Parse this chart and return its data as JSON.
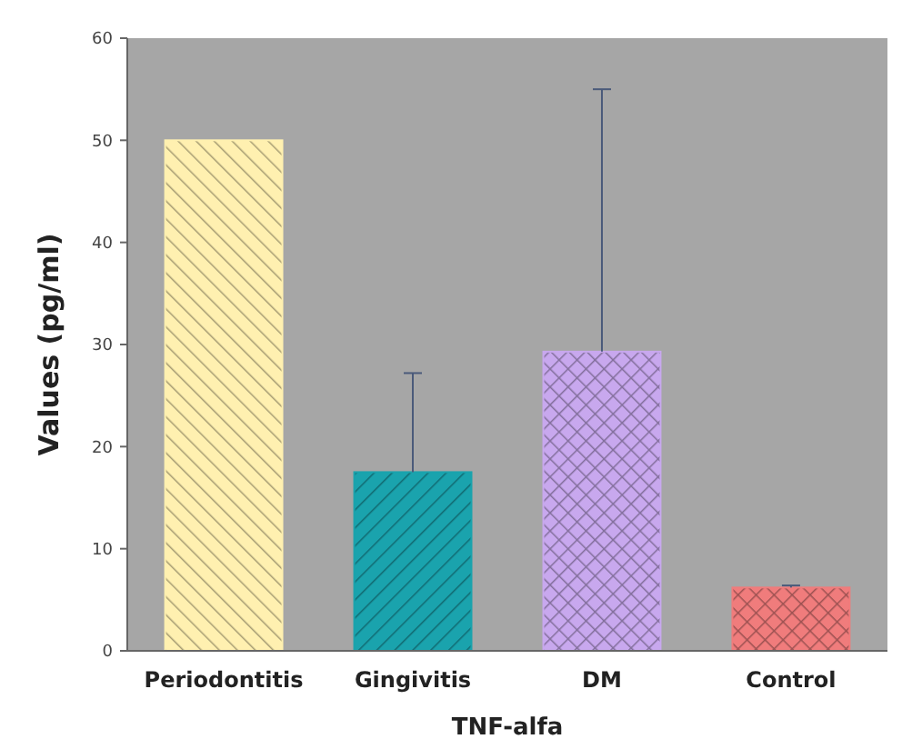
{
  "chart_data": {
    "type": "bar",
    "xlabel": "TNF-alfa",
    "ylabel": "Values (pg/ml)",
    "categories": [
      "Periodontitis",
      "Gingivitis",
      "DM",
      "Control"
    ],
    "values": [
      50,
      17.5,
      29.3,
      6.2
    ],
    "colors": [
      "#fff0b0",
      "#1aa3ad",
      "#c8a8ee",
      "#f07c7c"
    ],
    "errors": [
      null,
      [
        17.5,
        27.2
      ],
      [
        29.3,
        55
      ],
      [
        6.2,
        6.4
      ]
    ],
    "ylim": [
      0,
      60
    ],
    "yticks": [
      0,
      10,
      20,
      30,
      40,
      50,
      60
    ],
    "grid": false
  }
}
